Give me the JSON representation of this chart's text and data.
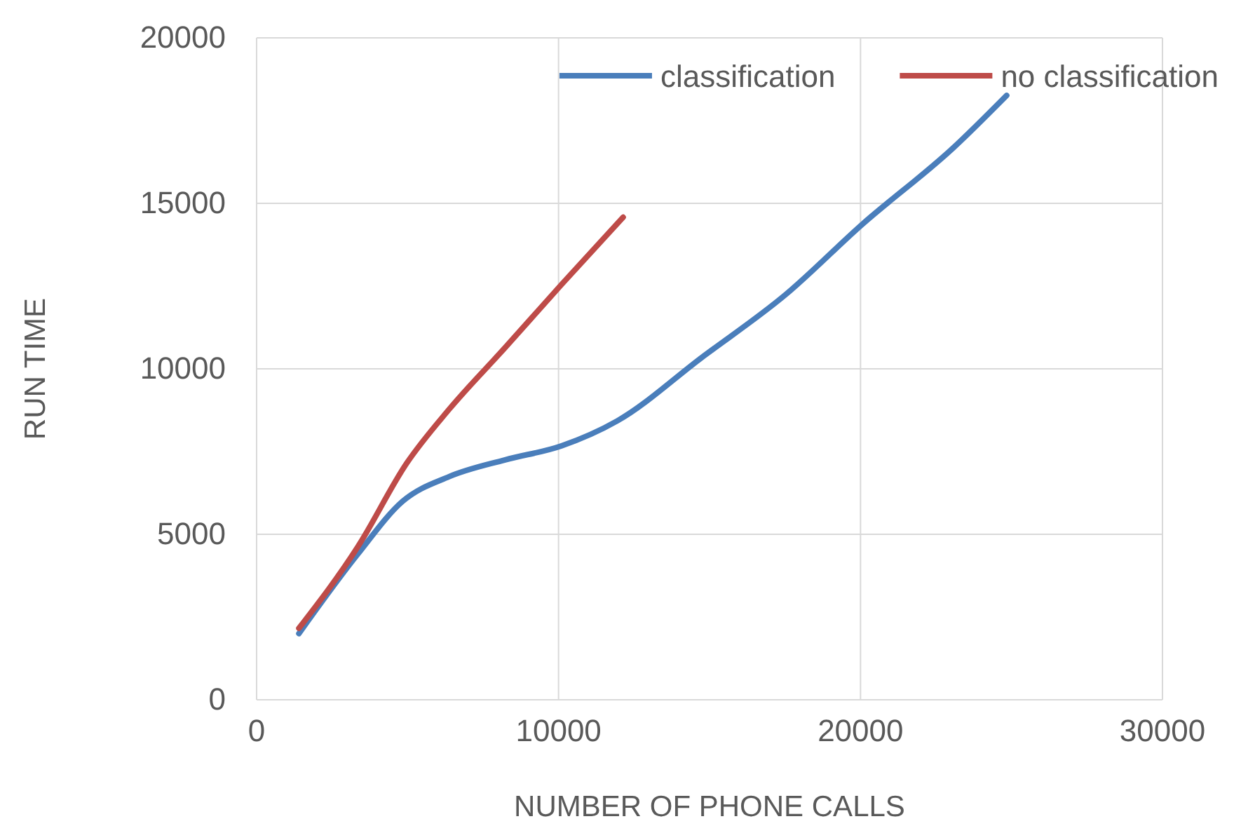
{
  "chart_data": {
    "type": "line",
    "xlabel": "NUMBER OF PHONE CALLS",
    "ylabel": "RUN TIME",
    "xlim": [
      0,
      30000
    ],
    "xticks": [
      0,
      10000,
      20000,
      30000
    ],
    "ylim": [
      0,
      20000
    ],
    "yticks": [
      0,
      5000,
      10000,
      15000,
      20000
    ],
    "grid": true,
    "legend": "top right",
    "marker": "none",
    "line_style": "solid",
    "series": [
      {
        "name": "classification",
        "color": "#4a7ebb",
        "x": [
          1400,
          3350,
          4840,
          6370,
          8230,
          10090,
          11950,
          14740,
          17530,
          20050,
          23100,
          24840
        ],
        "values": [
          2000,
          4400,
          6000,
          6740,
          7250,
          7670,
          8430,
          10340,
          12250,
          14360,
          16700,
          18260
        ]
      },
      {
        "name": "no classification",
        "color": "#be4b48",
        "x": [
          1400,
          3350,
          4980,
          6370,
          8230,
          10090,
          12140
        ],
        "values": [
          2160,
          4620,
          7160,
          8770,
          10640,
          12540,
          14580
        ]
      }
    ]
  }
}
